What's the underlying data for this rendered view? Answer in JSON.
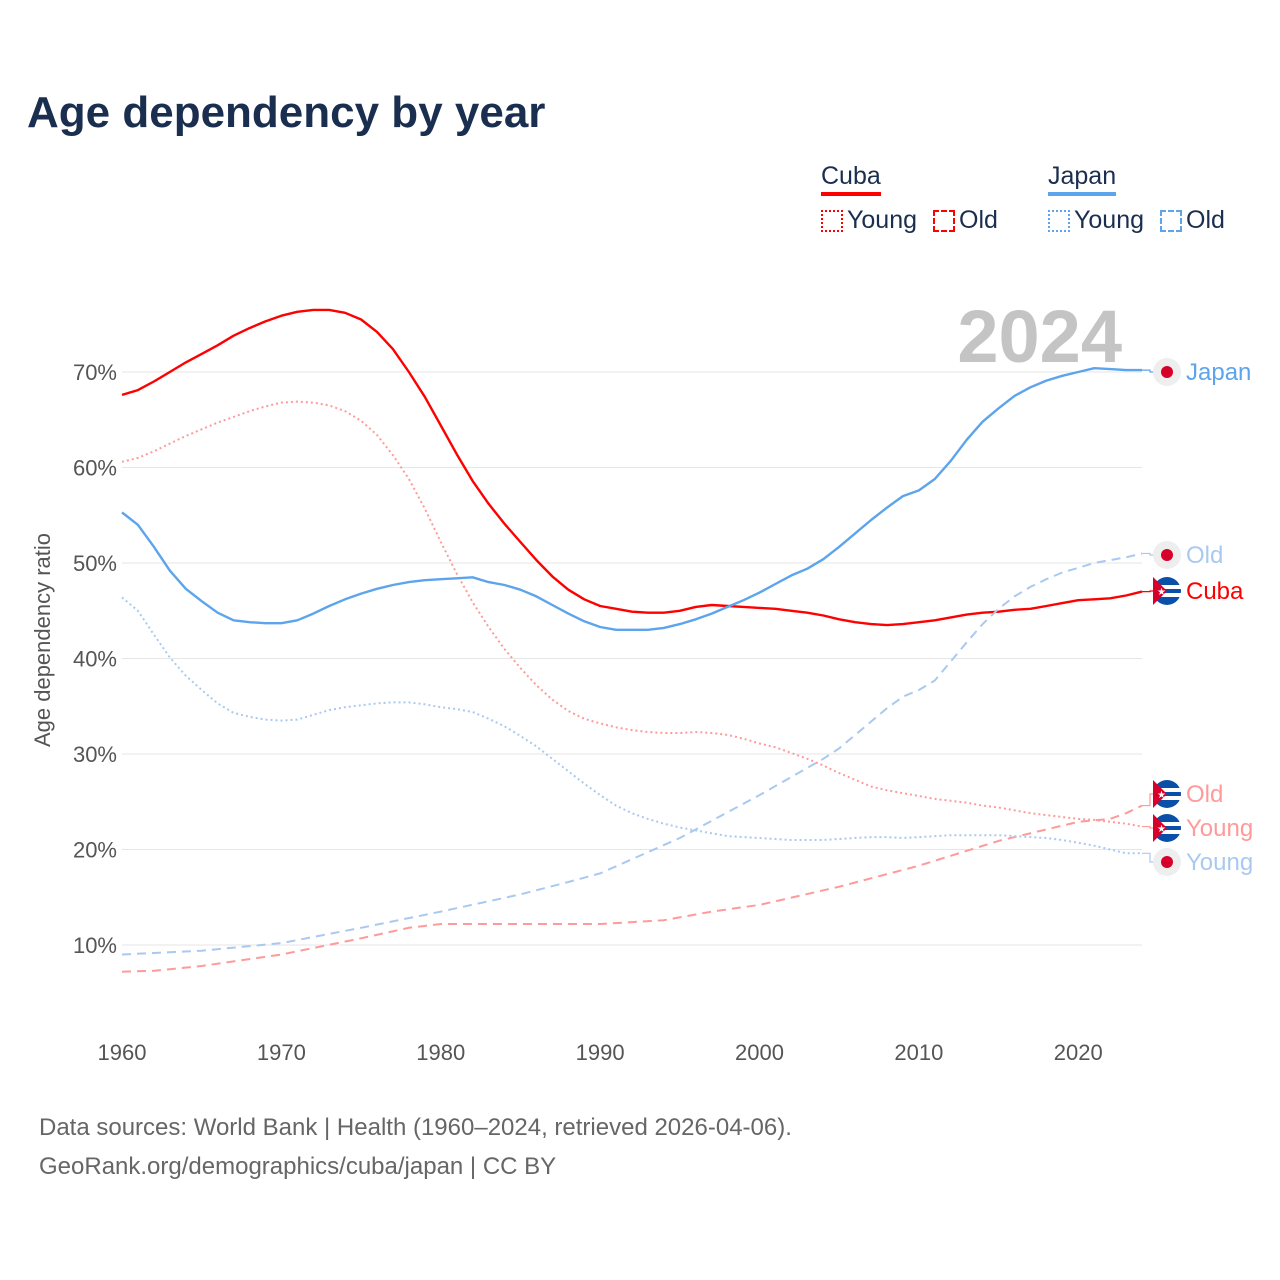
{
  "title": "Age dependency by year",
  "legend": {
    "groups": [
      {
        "name": "Cuba",
        "color": "#ff0000",
        "light": "#ff9a9a",
        "items": [
          "Young",
          "Old"
        ]
      },
      {
        "name": "Japan",
        "color": "#5ca4ec",
        "light": "#a9c9f1",
        "items": [
          "Young",
          "Old"
        ]
      }
    ]
  },
  "year_label": "2024",
  "footer": {
    "line1": "Data sources: World Bank | Health (1960–2024, retrieved 2026-04-06).",
    "line2": "GeoRank.org/demographics/cuba/japan | CC BY"
  },
  "chart_data": {
    "type": "line",
    "title": "Age dependency by year",
    "xlabel": "",
    "ylabel": "Age dependency ratio",
    "xlim": [
      1960,
      2024
    ],
    "ylim": [
      0,
      80
    ],
    "x_ticks": [
      1960,
      1970,
      1980,
      1990,
      2000,
      2010,
      2020
    ],
    "y_ticks": [
      10,
      20,
      30,
      40,
      50,
      60,
      70
    ],
    "y_tick_labels": [
      "10%",
      "20%",
      "30%",
      "40%",
      "50%",
      "60%",
      "70%"
    ],
    "grid": true,
    "legend_placement": "top-right",
    "series": [
      {
        "name": "Cuba",
        "label": "Cuba",
        "country": "Cuba",
        "kind": "Total",
        "color": "#ff0000",
        "style": "solid",
        "x": [
          1960,
          1961,
          1962,
          1963,
          1964,
          1965,
          1966,
          1967,
          1968,
          1969,
          1970,
          1971,
          1972,
          1973,
          1974,
          1975,
          1976,
          1977,
          1978,
          1979,
          1980,
          1981,
          1982,
          1983,
          1984,
          1985,
          1986,
          1987,
          1988,
          1989,
          1990,
          1991,
          1992,
          1993,
          1994,
          1995,
          1996,
          1997,
          1998,
          1999,
          2000,
          2001,
          2002,
          2003,
          2004,
          2005,
          2006,
          2007,
          2008,
          2009,
          2010,
          2011,
          2012,
          2013,
          2014,
          2015,
          2016,
          2017,
          2018,
          2019,
          2020,
          2021,
          2022,
          2023,
          2024
        ],
        "values": [
          67.6,
          68.1,
          69,
          70,
          71,
          71.9,
          72.8,
          73.8,
          74.6,
          75.3,
          75.9,
          76.3,
          76.5,
          76.5,
          76.2,
          75.5,
          74.2,
          72.4,
          70,
          67.4,
          64.4,
          61.4,
          58.6,
          56.2,
          54.1,
          52.2,
          50.3,
          48.6,
          47.2,
          46.2,
          45.5,
          45.2,
          44.9,
          44.8,
          44.8,
          45,
          45.4,
          45.6,
          45.5,
          45.4,
          45.3,
          45.2,
          45,
          44.8,
          44.5,
          44.1,
          43.8,
          43.6,
          43.5,
          43.6,
          43.8,
          44,
          44.3,
          44.6,
          44.8,
          44.9,
          45.1,
          45.2,
          45.5,
          45.8,
          46.1,
          46.2,
          46.3,
          46.6,
          47
        ]
      },
      {
        "name": "Cuba Young",
        "label": "Young",
        "country": "Cuba",
        "kind": "Young",
        "color": "#ff9a9a",
        "style": "dotted",
        "x": [
          1960,
          1961,
          1962,
          1963,
          1964,
          1965,
          1966,
          1967,
          1968,
          1969,
          1970,
          1971,
          1972,
          1973,
          1974,
          1975,
          1976,
          1977,
          1978,
          1979,
          1980,
          1981,
          1982,
          1983,
          1984,
          1985,
          1986,
          1987,
          1988,
          1989,
          1990,
          1991,
          1992,
          1993,
          1994,
          1995,
          1996,
          1997,
          1998,
          1999,
          2000,
          2001,
          2002,
          2003,
          2004,
          2005,
          2006,
          2007,
          2008,
          2009,
          2010,
          2011,
          2012,
          2013,
          2014,
          2015,
          2016,
          2017,
          2018,
          2019,
          2020,
          2021,
          2022,
          2023,
          2024
        ],
        "values": [
          60.6,
          61,
          61.7,
          62.5,
          63.3,
          64,
          64.7,
          65.3,
          65.9,
          66.4,
          66.8,
          66.9,
          66.8,
          66.5,
          65.9,
          64.9,
          63.4,
          61.3,
          58.8,
          55.7,
          52.2,
          48.9,
          45.9,
          43.3,
          41,
          39,
          37.2,
          35.7,
          34.5,
          33.7,
          33.2,
          32.8,
          32.5,
          32.3,
          32.2,
          32.2,
          32.3,
          32.2,
          32,
          31.6,
          31.1,
          30.7,
          30.1,
          29.5,
          28.8,
          28,
          27.3,
          26.6,
          26.2,
          25.9,
          25.6,
          25.3,
          25.1,
          24.9,
          24.6,
          24.4,
          24.1,
          23.8,
          23.6,
          23.4,
          23.2,
          23.1,
          22.9,
          22.7,
          22.4
        ]
      },
      {
        "name": "Cuba Old",
        "label": "Old",
        "country": "Cuba",
        "kind": "Old",
        "color": "#ff9a9a",
        "style": "dashed",
        "x": [
          1960,
          1962,
          1965,
          1970,
          1975,
          1978,
          1980,
          1985,
          1990,
          1994,
          1997,
          2000,
          2005,
          2010,
          2015,
          2020,
          2022,
          2023,
          2024
        ],
        "values": [
          7.2,
          7.3,
          7.8,
          9,
          10.7,
          11.8,
          12.2,
          12.2,
          12.2,
          12.6,
          13.5,
          14.2,
          16.1,
          18.3,
          20.9,
          22.9,
          23.2,
          23.8,
          24.6
        ]
      },
      {
        "name": "Japan",
        "label": "Japan",
        "country": "Japan",
        "kind": "Total",
        "color": "#5ca4ec",
        "style": "solid",
        "x": [
          1960,
          1961,
          1962,
          1963,
          1964,
          1965,
          1966,
          1967,
          1968,
          1969,
          1970,
          1971,
          1972,
          1973,
          1974,
          1975,
          1976,
          1977,
          1978,
          1979,
          1980,
          1981,
          1982,
          1983,
          1984,
          1985,
          1986,
          1987,
          1988,
          1989,
          1990,
          1991,
          1992,
          1993,
          1994,
          1995,
          1996,
          1997,
          1998,
          1999,
          2000,
          2001,
          2002,
          2003,
          2004,
          2005,
          2006,
          2007,
          2008,
          2009,
          2010,
          2011,
          2012,
          2013,
          2014,
          2015,
          2016,
          2017,
          2018,
          2019,
          2020,
          2021,
          2022,
          2023,
          2024
        ],
        "values": [
          55.3,
          54,
          51.7,
          49.2,
          47.3,
          46,
          44.8,
          44,
          43.8,
          43.7,
          43.7,
          44,
          44.7,
          45.5,
          46.2,
          46.8,
          47.3,
          47.7,
          48,
          48.2,
          48.3,
          48.4,
          48.5,
          48,
          47.7,
          47.2,
          46.5,
          45.6,
          44.7,
          43.9,
          43.3,
          43,
          43,
          43,
          43.2,
          43.6,
          44.1,
          44.7,
          45.4,
          46.1,
          46.9,
          47.8,
          48.7,
          49.4,
          50.4,
          51.7,
          53.1,
          54.5,
          55.8,
          57,
          57.6,
          58.8,
          60.7,
          62.9,
          64.8,
          66.2,
          67.5,
          68.4,
          69.1,
          69.6,
          70,
          70.4,
          70.3,
          70.2,
          70.2
        ]
      },
      {
        "name": "Japan Young",
        "label": "Young",
        "country": "Japan",
        "kind": "Young",
        "color": "#a9c9f1",
        "style": "dotted",
        "x": [
          1960,
          1961,
          1962,
          1963,
          1964,
          1965,
          1966,
          1967,
          1968,
          1969,
          1970,
          1971,
          1972,
          1973,
          1974,
          1975,
          1976,
          1977,
          1978,
          1979,
          1980,
          1981,
          1982,
          1983,
          1984,
          1985,
          1986,
          1987,
          1988,
          1989,
          1990,
          1991,
          1992,
          1993,
          1994,
          1995,
          1996,
          1997,
          1998,
          1999,
          2000,
          2001,
          2002,
          2003,
          2004,
          2005,
          2006,
          2007,
          2008,
          2009,
          2010,
          2011,
          2012,
          2013,
          2014,
          2015,
          2016,
          2017,
          2018,
          2019,
          2020,
          2021,
          2022,
          2023,
          2024
        ],
        "values": [
          46.4,
          45,
          42.5,
          40.1,
          38.2,
          36.7,
          35.3,
          34.3,
          33.9,
          33.6,
          33.5,
          33.6,
          34.1,
          34.6,
          34.9,
          35.1,
          35.3,
          35.4,
          35.4,
          35.2,
          34.9,
          34.7,
          34.4,
          33.7,
          32.9,
          31.9,
          30.8,
          29.5,
          28.2,
          26.9,
          25.7,
          24.6,
          23.8,
          23.2,
          22.7,
          22.3,
          22,
          21.7,
          21.4,
          21.3,
          21.2,
          21.1,
          21,
          21,
          21,
          21.1,
          21.2,
          21.3,
          21.3,
          21.2,
          21.3,
          21.4,
          21.5,
          21.5,
          21.5,
          21.5,
          21.4,
          21.3,
          21.2,
          21,
          20.7,
          20.4,
          20,
          19.6,
          19.6
        ]
      },
      {
        "name": "Japan Old",
        "label": "Old",
        "country": "Japan",
        "kind": "Old",
        "color": "#a9c9f1",
        "style": "dashed",
        "x": [
          1960,
          1965,
          1970,
          1975,
          1980,
          1985,
          1988,
          1990,
          1995,
          2000,
          2004,
          2005,
          2008,
          2009,
          2010,
          2011,
          2012,
          2013,
          2014,
          2015,
          2016,
          2017,
          2018,
          2019,
          2020,
          2021,
          2022,
          2023,
          2024
        ],
        "values": [
          9,
          9.4,
          10.2,
          11.8,
          13.5,
          15.3,
          16.6,
          17.5,
          21.2,
          25.7,
          29.5,
          30.6,
          34.8,
          36,
          36.7,
          37.7,
          39.7,
          41.7,
          43.6,
          45.2,
          46.5,
          47.5,
          48.3,
          49,
          49.5,
          50,
          50.3,
          50.6,
          51
        ]
      }
    ]
  }
}
